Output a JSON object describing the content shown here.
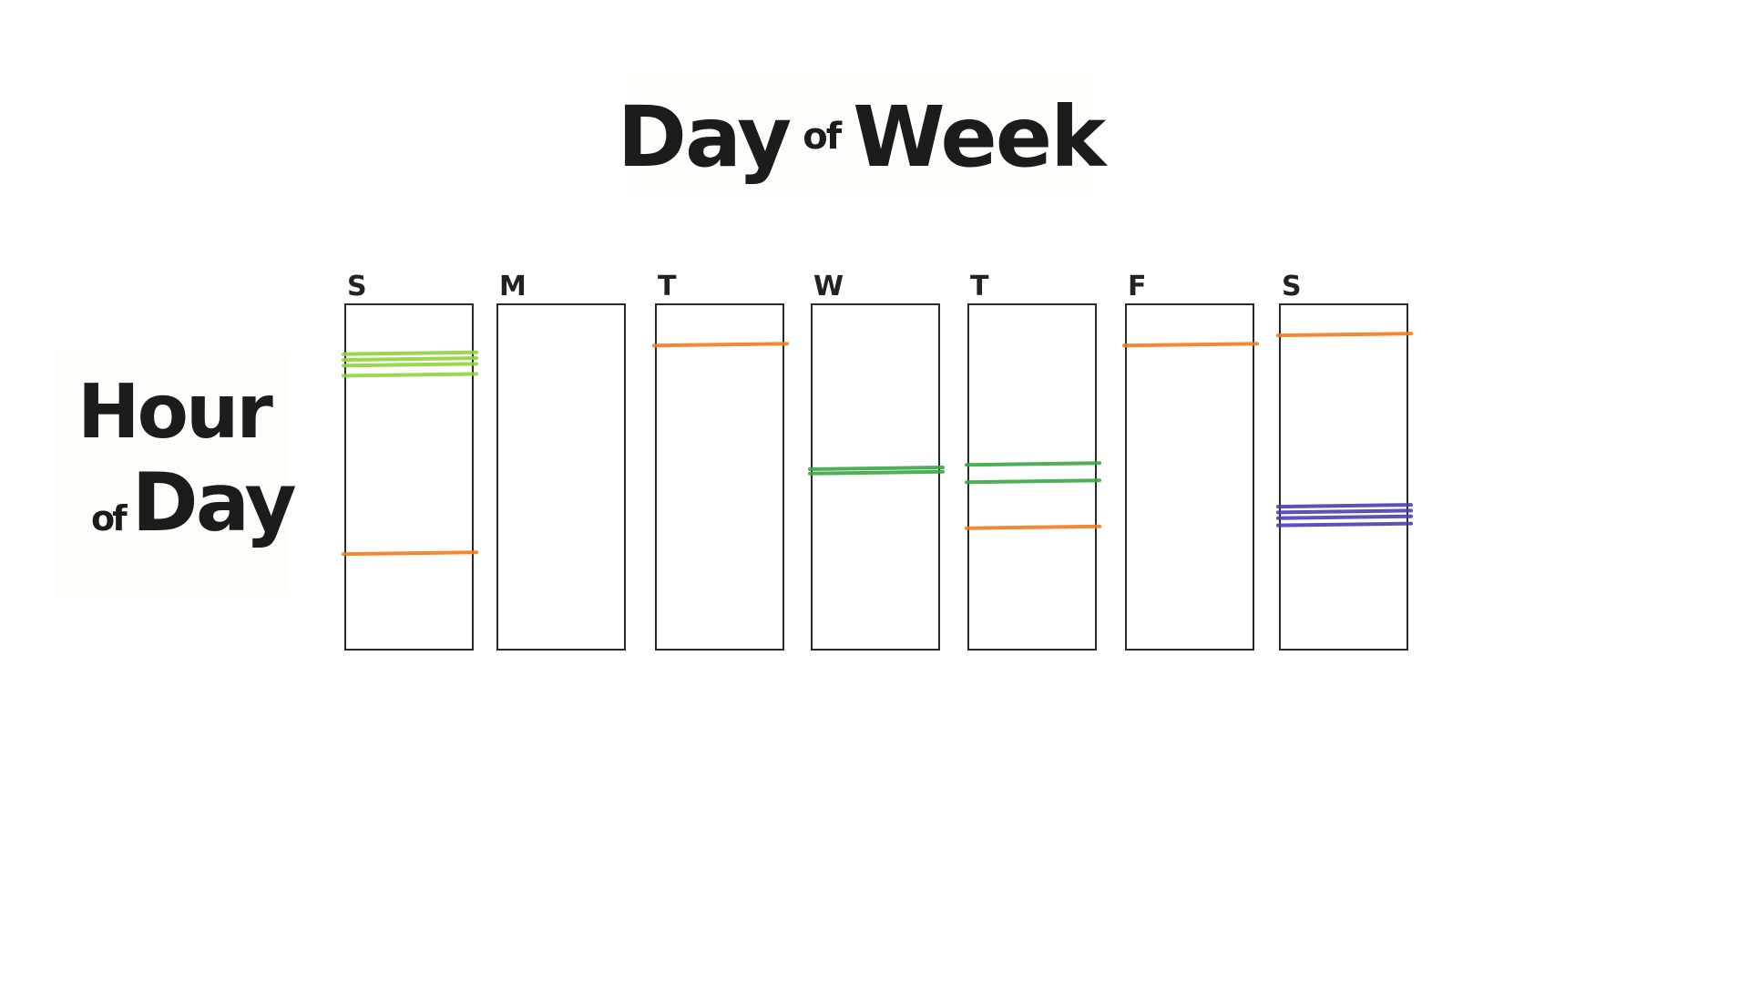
{
  "chart_data": {
    "type": "strip",
    "title": "Day of Week",
    "title_parts": [
      "Day",
      "of",
      "Week"
    ],
    "ylabel": "Hour of Day",
    "ylabel_parts": [
      "Hour",
      "of",
      "Day"
    ],
    "ylim": [
      0,
      24
    ],
    "grid": false,
    "categories": [
      "S",
      "M",
      "T",
      "W",
      "T",
      "F",
      "S"
    ],
    "colors": {
      "orange": "#f47a1f",
      "light_green": "#8fd33a",
      "green": "#3aa845",
      "blue": "#4a3fb5",
      "frame": "#2a2a2a"
    },
    "series": [
      {
        "day": 0,
        "marks": [
          {
            "hour": 3.4,
            "color": "light_green"
          },
          {
            "hour": 3.8,
            "color": "light_green"
          },
          {
            "hour": 4.2,
            "color": "light_green"
          },
          {
            "hour": 4.9,
            "color": "light_green"
          },
          {
            "hour": 17.3,
            "color": "orange"
          }
        ]
      },
      {
        "day": 1,
        "marks": []
      },
      {
        "day": 2,
        "marks": [
          {
            "hour": 2.8,
            "color": "orange"
          }
        ]
      },
      {
        "day": 3,
        "marks": [
          {
            "hour": 11.4,
            "color": "green"
          },
          {
            "hour": 11.7,
            "color": "green"
          }
        ]
      },
      {
        "day": 4,
        "marks": [
          {
            "hour": 11.1,
            "color": "green"
          },
          {
            "hour": 12.3,
            "color": "green"
          },
          {
            "hour": 15.5,
            "color": "orange"
          }
        ]
      },
      {
        "day": 5,
        "marks": [
          {
            "hour": 2.8,
            "color": "orange"
          }
        ]
      },
      {
        "day": 6,
        "marks": [
          {
            "hour": 2.1,
            "color": "orange"
          },
          {
            "hour": 14.0,
            "color": "blue"
          },
          {
            "hour": 14.4,
            "color": "blue"
          },
          {
            "hour": 14.8,
            "color": "blue"
          },
          {
            "hour": 15.3,
            "color": "blue"
          }
        ]
      }
    ]
  }
}
